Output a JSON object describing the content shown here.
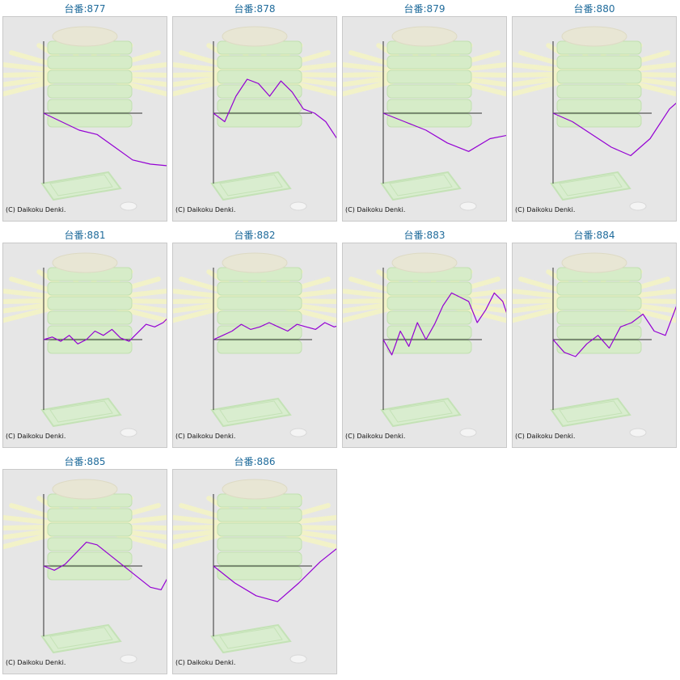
{
  "copyright": "(C) Daikoku Denki.",
  "colors": {
    "line": "#9400d3",
    "title": "#1f6b9b",
    "background": "#e6e6e6"
  },
  "chart_data": [
    {
      "type": "line",
      "title": "台番:877",
      "values": [
        0,
        -10,
        -20,
        -25,
        -40,
        -55,
        -60,
        -62,
        -55,
        -40,
        -28,
        -20
      ]
    },
    {
      "type": "line",
      "title": "台番:878",
      "values": [
        0,
        -10,
        20,
        40,
        35,
        20,
        38,
        25,
        5,
        0,
        -10,
        -30,
        -45,
        -50,
        -40,
        -55,
        -62,
        -40,
        -38
      ]
    },
    {
      "type": "line",
      "title": "台番:879",
      "values": [
        0,
        -10,
        -20,
        -35,
        -45,
        -30,
        -25
      ]
    },
    {
      "type": "line",
      "title": "台番:880",
      "values": [
        0,
        -10,
        -25,
        -40,
        -50,
        -30,
        5,
        25,
        35,
        45,
        38
      ]
    },
    {
      "type": "line",
      "title": "台番:881",
      "values": [
        0,
        3,
        -2,
        5,
        -5,
        0,
        10,
        5,
        12,
        2,
        -2,
        8,
        18,
        15,
        20,
        30,
        35,
        45,
        40,
        55,
        65,
        60,
        58,
        48,
        60
      ]
    },
    {
      "type": "line",
      "title": "台番:882",
      "values": [
        0,
        5,
        10,
        18,
        12,
        15,
        20,
        15,
        10,
        18,
        15,
        12,
        20,
        15,
        18,
        22,
        15,
        25,
        40,
        60,
        75,
        88,
        82
      ]
    },
    {
      "type": "line",
      "title": "台番:883",
      "values": [
        0,
        -18,
        10,
        -8,
        20,
        0,
        18,
        40,
        55,
        50,
        45,
        20,
        35,
        55,
        45,
        15,
        28,
        10,
        25,
        38,
        65,
        80,
        55,
        40,
        42
      ]
    },
    {
      "type": "line",
      "title": "台番:884",
      "values": [
        0,
        -15,
        -20,
        -5,
        5,
        -10,
        15,
        20,
        30,
        10,
        5,
        40,
        45,
        30,
        55,
        60,
        40,
        50,
        52
      ]
    },
    {
      "type": "line",
      "title": "台番:885",
      "values": [
        0,
        -5,
        2,
        15,
        28,
        25,
        15,
        5,
        -5,
        -15,
        -25,
        -28,
        -5,
        -30,
        -40,
        -48,
        -58,
        -65,
        -40,
        -15
      ]
    },
    {
      "type": "line",
      "title": "台番:886",
      "values": [
        0,
        -20,
        -35,
        -42,
        -20,
        5,
        25,
        45,
        48
      ]
    }
  ]
}
